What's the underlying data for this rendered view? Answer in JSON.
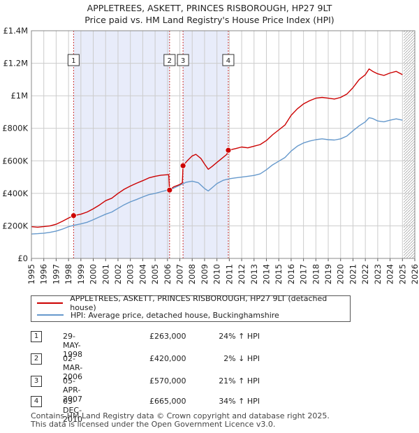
{
  "title_line1": "APPLETREES, ASKETT, PRINCES RISBOROUGH, HP27 9LT",
  "title_line2": "Price paid vs. HM Land Registry's House Price Index (HPI)",
  "colors": {
    "property": "#cc0000",
    "hpi": "#6699cc",
    "shade": "#e8ecfa",
    "grid": "#cccccc",
    "future_hatch": "#999999"
  },
  "chart_data": {
    "type": "line",
    "x_range": [
      1995,
      2026
    ],
    "ylim": [
      0,
      1400000
    ],
    "y_ticks": [
      {
        "value": 0,
        "label": "£0"
      },
      {
        "value": 200000,
        "label": "£200K"
      },
      {
        "value": 400000,
        "label": "£400K"
      },
      {
        "value": 600000,
        "label": "£600K"
      },
      {
        "value": 800000,
        "label": "£800K"
      },
      {
        "value": 1000000,
        "label": "£1M"
      },
      {
        "value": 1200000,
        "label": "£1.2M"
      },
      {
        "value": 1400000,
        "label": "£1.4M"
      }
    ],
    "x_ticks": [
      "1995",
      "1996",
      "1997",
      "1998",
      "1999",
      "2000",
      "2001",
      "2002",
      "2003",
      "2004",
      "2005",
      "2006",
      "2007",
      "2008",
      "2009",
      "2010",
      "2011",
      "2012",
      "2013",
      "2014",
      "2015",
      "2016",
      "2017",
      "2018",
      "2019",
      "2020",
      "2021",
      "2022",
      "2023",
      "2024",
      "2025",
      "2026"
    ],
    "shaded_ranges": [
      [
        1998.41,
        2006.17
      ],
      [
        2007.26,
        2010.92
      ]
    ],
    "future_from": 2025.1,
    "series": [
      {
        "name": "APPLETREES, ASKETT, PRINCES RISBOROUGH, HP27 9LT (detached house)",
        "color": "#cc0000",
        "points": [
          [
            1995.0,
            195000
          ],
          [
            1995.5,
            192000
          ],
          [
            1996.0,
            196000
          ],
          [
            1996.5,
            200000
          ],
          [
            1997.0,
            210000
          ],
          [
            1997.5,
            228000
          ],
          [
            1998.0,
            248000
          ],
          [
            1998.41,
            263000
          ],
          [
            1999.0,
            272000
          ],
          [
            1999.5,
            285000
          ],
          [
            2000.0,
            305000
          ],
          [
            2000.5,
            328000
          ],
          [
            2001.0,
            355000
          ],
          [
            2001.5,
            370000
          ],
          [
            2002.0,
            400000
          ],
          [
            2002.5,
            425000
          ],
          [
            2003.0,
            445000
          ],
          [
            2003.5,
            462000
          ],
          [
            2004.0,
            478000
          ],
          [
            2004.5,
            495000
          ],
          [
            2005.0,
            505000
          ],
          [
            2005.5,
            512000
          ],
          [
            2006.1,
            515000
          ],
          [
            2006.17,
            420000
          ],
          [
            2006.5,
            440000
          ],
          [
            2007.0,
            455000
          ],
          [
            2007.2,
            465000
          ],
          [
            2007.26,
            570000
          ],
          [
            2007.6,
            600000
          ],
          [
            2008.0,
            630000
          ],
          [
            2008.3,
            640000
          ],
          [
            2008.7,
            615000
          ],
          [
            2009.0,
            580000
          ],
          [
            2009.3,
            548000
          ],
          [
            2009.6,
            565000
          ],
          [
            2010.0,
            590000
          ],
          [
            2010.4,
            615000
          ],
          [
            2010.8,
            640000
          ],
          [
            2010.92,
            665000
          ],
          [
            2011.5,
            675000
          ],
          [
            2012.0,
            685000
          ],
          [
            2012.5,
            680000
          ],
          [
            2013.0,
            690000
          ],
          [
            2013.5,
            700000
          ],
          [
            2014.0,
            725000
          ],
          [
            2014.5,
            760000
          ],
          [
            2015.0,
            790000
          ],
          [
            2015.5,
            820000
          ],
          [
            2016.0,
            880000
          ],
          [
            2016.5,
            920000
          ],
          [
            2017.0,
            950000
          ],
          [
            2017.5,
            970000
          ],
          [
            2018.0,
            985000
          ],
          [
            2018.5,
            990000
          ],
          [
            2019.0,
            985000
          ],
          [
            2019.5,
            980000
          ],
          [
            2020.0,
            990000
          ],
          [
            2020.5,
            1010000
          ],
          [
            2021.0,
            1050000
          ],
          [
            2021.5,
            1100000
          ],
          [
            2022.0,
            1130000
          ],
          [
            2022.3,
            1165000
          ],
          [
            2022.6,
            1150000
          ],
          [
            2023.0,
            1135000
          ],
          [
            2023.5,
            1125000
          ],
          [
            2024.0,
            1140000
          ],
          [
            2024.5,
            1150000
          ],
          [
            2025.0,
            1130000
          ]
        ]
      },
      {
        "name": "HPI: Average price, detached house, Buckinghamshire",
        "color": "#6699cc",
        "points": [
          [
            1995.0,
            150000
          ],
          [
            1995.5,
            152000
          ],
          [
            1996.0,
            155000
          ],
          [
            1996.5,
            160000
          ],
          [
            1997.0,
            168000
          ],
          [
            1997.5,
            180000
          ],
          [
            1998.0,
            195000
          ],
          [
            1998.5,
            205000
          ],
          [
            1999.0,
            212000
          ],
          [
            1999.5,
            222000
          ],
          [
            2000.0,
            238000
          ],
          [
            2000.5,
            255000
          ],
          [
            2001.0,
            272000
          ],
          [
            2001.5,
            285000
          ],
          [
            2002.0,
            308000
          ],
          [
            2002.5,
            330000
          ],
          [
            2003.0,
            348000
          ],
          [
            2003.5,
            362000
          ],
          [
            2004.0,
            378000
          ],
          [
            2004.5,
            392000
          ],
          [
            2005.0,
            400000
          ],
          [
            2005.5,
            410000
          ],
          [
            2006.0,
            420000
          ],
          [
            2006.5,
            432000
          ],
          [
            2007.0,
            450000
          ],
          [
            2007.5,
            468000
          ],
          [
            2008.0,
            475000
          ],
          [
            2008.5,
            465000
          ],
          [
            2009.0,
            430000
          ],
          [
            2009.3,
            415000
          ],
          [
            2009.7,
            440000
          ],
          [
            2010.0,
            460000
          ],
          [
            2010.5,
            480000
          ],
          [
            2011.0,
            490000
          ],
          [
            2011.5,
            495000
          ],
          [
            2012.0,
            500000
          ],
          [
            2012.5,
            505000
          ],
          [
            2013.0,
            510000
          ],
          [
            2013.5,
            520000
          ],
          [
            2014.0,
            545000
          ],
          [
            2014.5,
            575000
          ],
          [
            2015.0,
            598000
          ],
          [
            2015.5,
            620000
          ],
          [
            2016.0,
            660000
          ],
          [
            2016.5,
            690000
          ],
          [
            2017.0,
            710000
          ],
          [
            2017.5,
            722000
          ],
          [
            2018.0,
            730000
          ],
          [
            2018.5,
            735000
          ],
          [
            2019.0,
            730000
          ],
          [
            2019.5,
            728000
          ],
          [
            2020.0,
            735000
          ],
          [
            2020.5,
            752000
          ],
          [
            2021.0,
            785000
          ],
          [
            2021.5,
            815000
          ],
          [
            2022.0,
            840000
          ],
          [
            2022.3,
            865000
          ],
          [
            2022.6,
            860000
          ],
          [
            2023.0,
            845000
          ],
          [
            2023.5,
            840000
          ],
          [
            2024.0,
            850000
          ],
          [
            2024.5,
            858000
          ],
          [
            2025.0,
            850000
          ]
        ]
      }
    ],
    "sales": [
      {
        "num": "1",
        "x": 1998.41,
        "price": 263000,
        "date": "29-MAY-1998",
        "price_label": "£263,000",
        "hpi_label": "24% ↑ HPI"
      },
      {
        "num": "2",
        "x": 2006.17,
        "price": 420000,
        "date": "02-MAR-2006",
        "price_label": "£420,000",
        "hpi_label": "2% ↓ HPI"
      },
      {
        "num": "3",
        "x": 2007.26,
        "price": 570000,
        "date": "05-APR-2007",
        "price_label": "£570,000",
        "hpi_label": "21% ↑ HPI"
      },
      {
        "num": "4",
        "x": 2010.92,
        "price": 665000,
        "date": "03-DEC-2010",
        "price_label": "£665,000",
        "hpi_label": "34% ↑ HPI"
      }
    ]
  },
  "legend": {
    "property_label": "APPLETREES, ASKETT, PRINCES RISBOROUGH, HP27 9LT (detached house)",
    "hpi_label": "HPI: Average price, detached house, Buckinghamshire"
  },
  "footer": {
    "line1": "Contains HM Land Registry data © Crown copyright and database right 2025.",
    "line2": "This data is licensed under the Open Government Licence v3.0."
  }
}
